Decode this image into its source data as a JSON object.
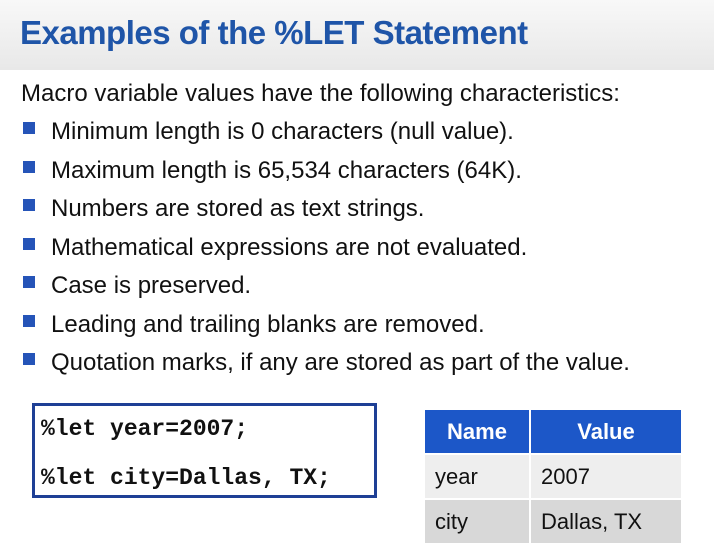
{
  "slide": {
    "title": "Examples of the %LET Statement",
    "intro": "Macro variable values have the following characteristics:",
    "bullets": [
      "Minimum length is 0 characters (null value).",
      "Maximum length is 65,534 characters (64K).",
      "Numbers are stored as text strings.",
      "Mathematical expressions are not evaluated.",
      "Case is preserved.",
      "Leading and trailing blanks are removed.",
      "Quotation marks, if any are stored as part of the value."
    ],
    "code": [
      "%let year=2007;",
      "%let city=Dallas, TX;"
    ],
    "table": {
      "headers": [
        "Name",
        "Value"
      ],
      "rows": [
        [
          "year",
          "2007"
        ],
        [
          "city",
          "Dallas, TX"
        ]
      ]
    }
  },
  "colors": {
    "title": "#1f55a8",
    "bullet": "#2554b8",
    "code_border": "#1e3f95",
    "table_header": "#1c57c8",
    "table_row_odd": "#eeeeee",
    "table_row_even": "#d8d8d8"
  },
  "icons": {
    "bullet": "square-bullet-icon"
  }
}
